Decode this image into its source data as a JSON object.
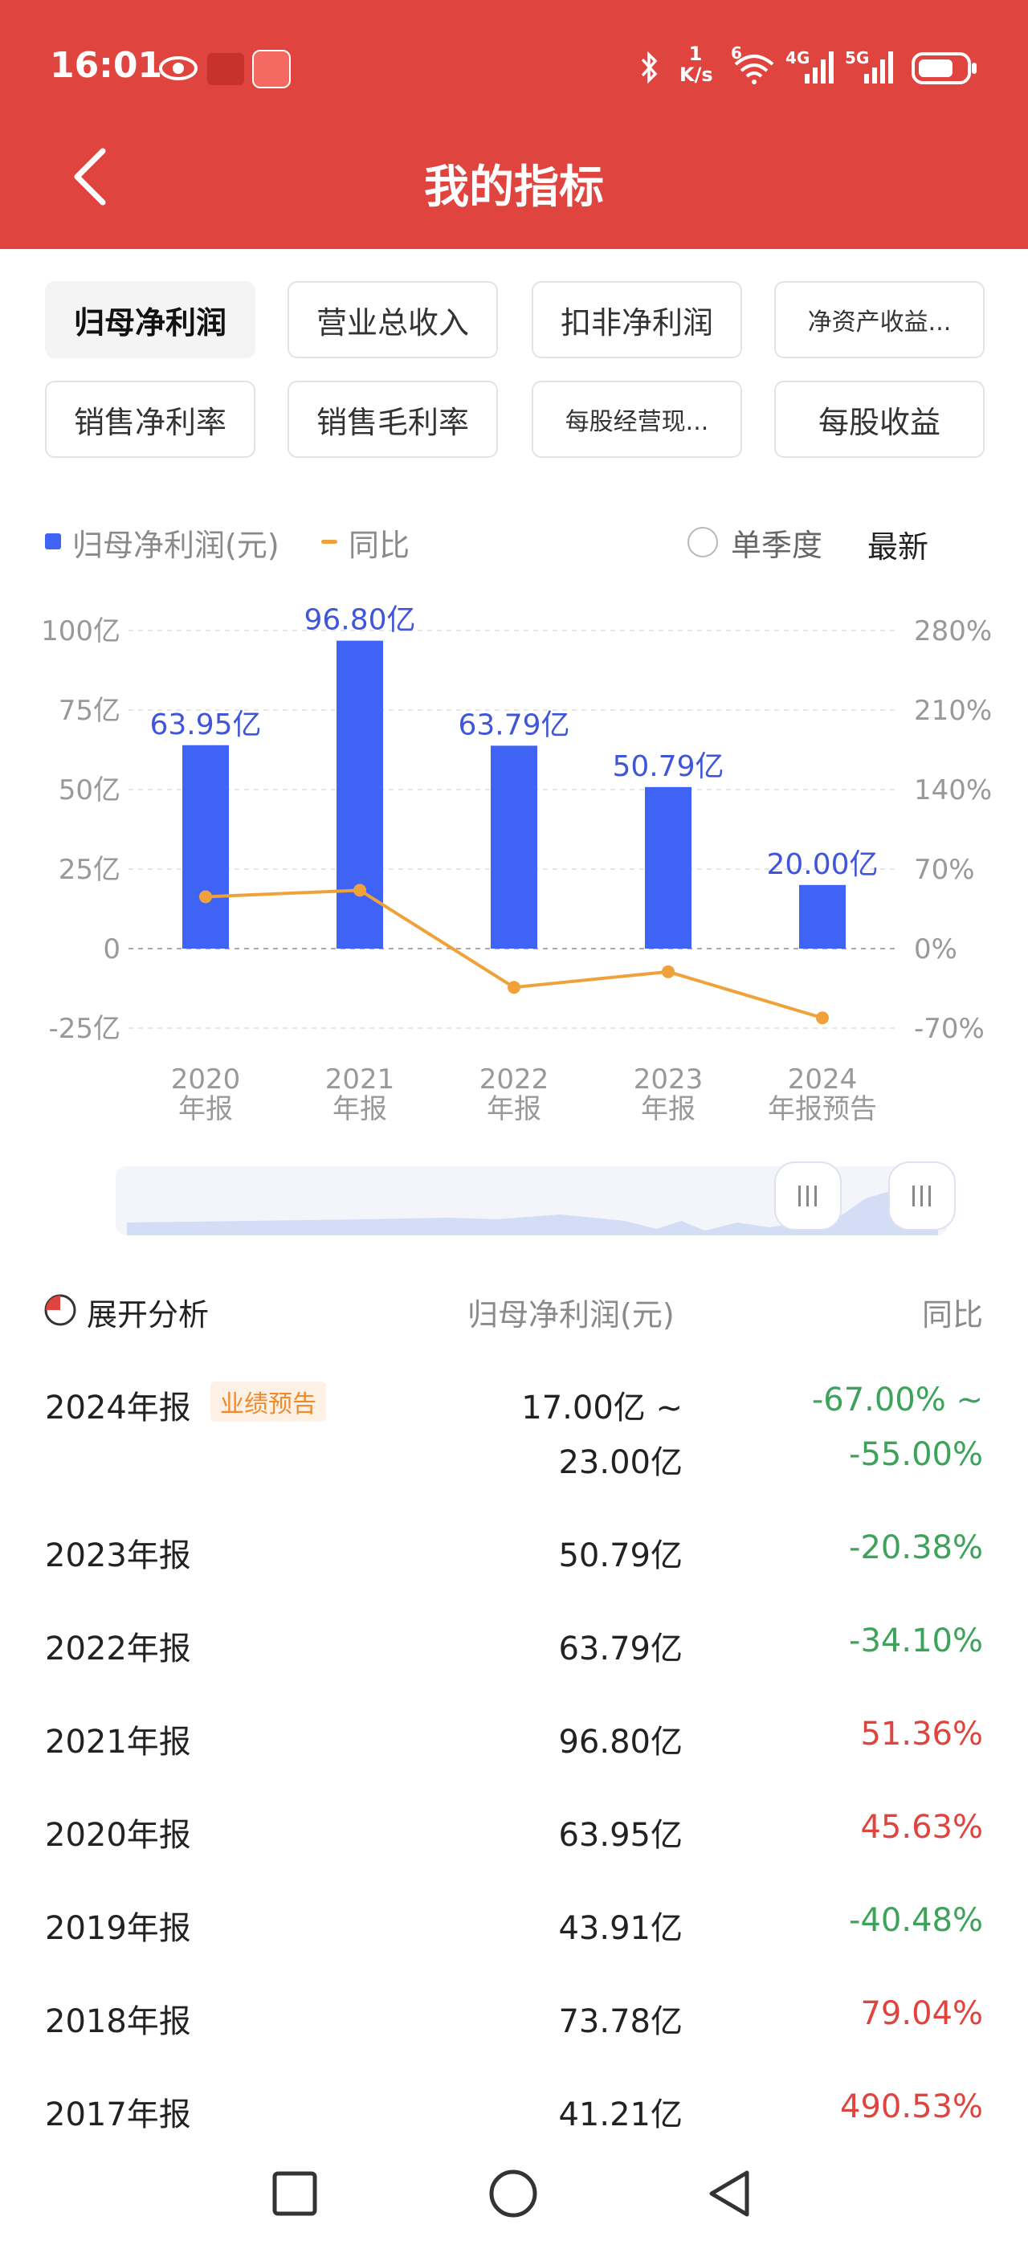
{
  "status_bar": {
    "time": "16:01",
    "net_speed_top": "1",
    "net_speed_unit": "K/s",
    "wifi_label": "6",
    "sig1_label": "4G",
    "sig2_label": "5G"
  },
  "header": {
    "title": "我的指标"
  },
  "tabs": [
    {
      "label": "归母净利润",
      "active": true
    },
    {
      "label": "营业总收入"
    },
    {
      "label": "扣非净利润"
    },
    {
      "label": "净资产收益..."
    },
    {
      "label": "销售净利率"
    },
    {
      "label": "销售毛利率"
    },
    {
      "label": "每股经营现..."
    },
    {
      "label": "每股收益"
    }
  ],
  "legend": {
    "series1": "归母净利润(元)",
    "series2": "同比",
    "single_quarter": "单季度",
    "latest": "最新"
  },
  "chart_data": {
    "type": "bar",
    "categories": [
      "2020\n年报",
      "2021\n年报",
      "2022\n年报",
      "2023\n年报",
      "2024\n年报预告"
    ],
    "category_line1": [
      "2020",
      "2021",
      "2022",
      "2023",
      "2024"
    ],
    "category_line2": [
      "年报",
      "年报",
      "年报",
      "年报",
      "年报预告"
    ],
    "series": [
      {
        "name": "归母净利润(元)",
        "values": [
          63.95,
          96.8,
          63.79,
          50.79,
          20.0
        ],
        "labels": [
          "63.95亿",
          "96.80亿",
          "63.79亿",
          "50.79亿",
          "20.00亿"
        ],
        "color": "#3f63f5"
      },
      {
        "name": "同比",
        "values": [
          45.63,
          51.36,
          -34.1,
          -20.38,
          -61.0
        ],
        "color": "#f0a23a"
      }
    ],
    "left_axis": {
      "ticks": [
        100,
        75,
        50,
        25,
        0,
        -25
      ],
      "tick_labels": [
        "100亿",
        "75亿",
        "50亿",
        "25亿",
        "0",
        "-25亿"
      ],
      "ylim": [
        -25,
        100
      ]
    },
    "right_axis": {
      "ticks": [
        280,
        210,
        140,
        70,
        0,
        -70
      ],
      "tick_labels": [
        "280%",
        "210%",
        "140%",
        "70%",
        "0%",
        "-70%"
      ],
      "ylim": [
        -70,
        280
      ]
    },
    "grid": true
  },
  "table": {
    "expand_label": "展开分析",
    "col_value": "归母净利润(元)",
    "col_yoy": "同比",
    "forecast_badge": "业绩预告",
    "forecast": {
      "label": "2024年报",
      "value_line1": "17.00亿 ~",
      "value_line2": "23.00亿",
      "yoy_line1": "-67.00% ~",
      "yoy_line2": "-55.00%"
    },
    "rows": [
      {
        "label": "2023年报",
        "value": "50.79亿",
        "yoy": "-20.38%",
        "sign": "neg"
      },
      {
        "label": "2022年报",
        "value": "63.79亿",
        "yoy": "-34.10%",
        "sign": "neg"
      },
      {
        "label": "2021年报",
        "value": "96.80亿",
        "yoy": "51.36%",
        "sign": "pos"
      },
      {
        "label": "2020年报",
        "value": "63.95亿",
        "yoy": "45.63%",
        "sign": "pos"
      },
      {
        "label": "2019年报",
        "value": "43.91亿",
        "yoy": "-40.48%",
        "sign": "neg"
      },
      {
        "label": "2018年报",
        "value": "73.78亿",
        "yoy": "79.04%",
        "sign": "pos"
      },
      {
        "label": "2017年报",
        "value": "41.21亿",
        "yoy": "490.53%",
        "sign": "pos"
      }
    ]
  },
  "colors": {
    "header": "#e0443f",
    "bar": "#3f63f5",
    "line": "#f0a23a",
    "negative": "#3ea35a",
    "positive": "#e0443f"
  }
}
